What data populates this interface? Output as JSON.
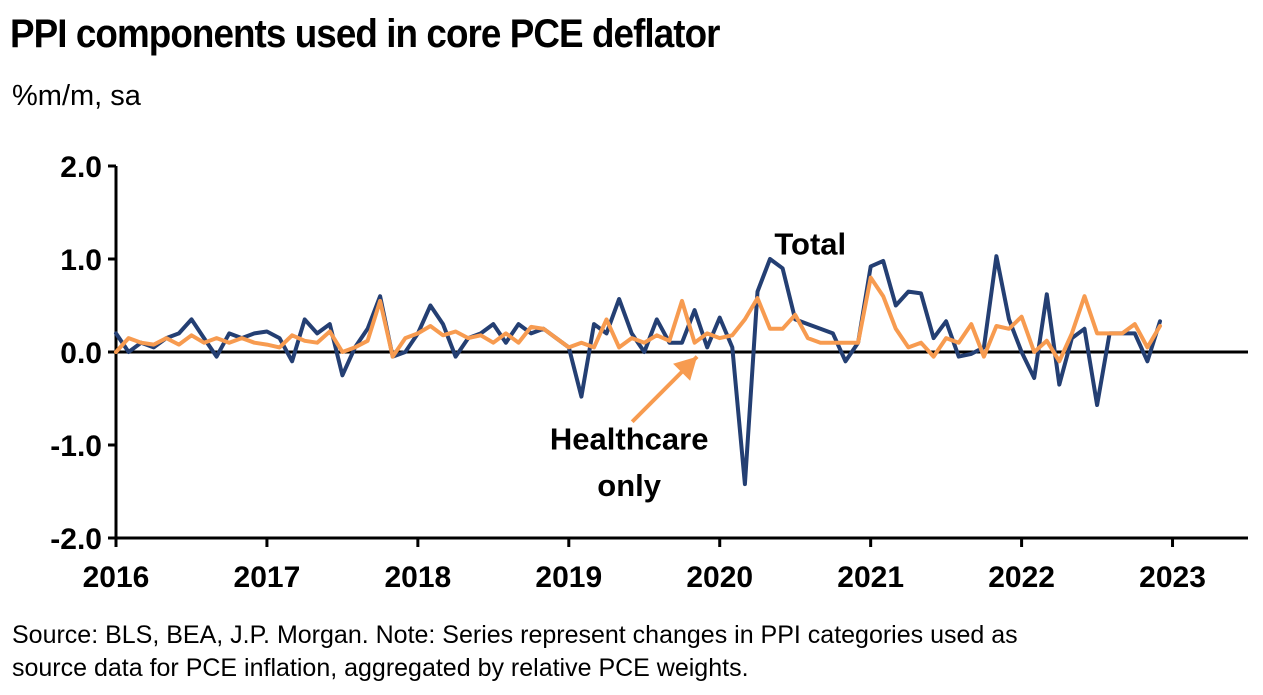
{
  "title": "PPI components used in core PCE deflator",
  "subtitle": "%m/m, sa",
  "source_line1": "Source: BLS, BEA, J.P. Morgan. Note: Series represent changes in PPI categories used as",
  "source_line2": "source data for PCE inflation, aggregated by relative PCE weights.",
  "colors": {
    "total": "#243f73",
    "healthcare": "#f79b50",
    "axis": "#000000"
  },
  "chart_data": {
    "type": "line",
    "title": "PPI components used in core PCE deflator",
    "ylabel": "%m/m, sa",
    "ylim": [
      -2.0,
      2.0
    ],
    "xlim": [
      2016,
      2023.5
    ],
    "y_ticks": [
      "2.0",
      "1.0",
      "0.0",
      "-1.0",
      "-2.0"
    ],
    "y_tick_values": [
      2.0,
      1.0,
      0.0,
      -1.0,
      -2.0
    ],
    "x_ticks": [
      "2016",
      "2017",
      "2018",
      "2019",
      "2020",
      "2021",
      "2022",
      "2023"
    ],
    "x_tick_values": [
      2016,
      2017,
      2018,
      2019,
      2020,
      2021,
      2022,
      2023
    ],
    "annotations": {
      "total": "Total",
      "healthcare_line1": "Healthcare",
      "healthcare_line2": "only"
    },
    "grid": false,
    "series": [
      {
        "name": "Total",
        "x_start": "2016-01",
        "values": [
          0.2,
          0.0,
          0.1,
          0.05,
          0.15,
          0.2,
          0.35,
          0.15,
          -0.05,
          0.2,
          0.15,
          0.2,
          0.22,
          0.15,
          -0.1,
          0.35,
          0.2,
          0.3,
          -0.25,
          0.05,
          0.25,
          0.6,
          -0.05,
          0.0,
          0.2,
          0.5,
          0.3,
          -0.05,
          0.15,
          0.2,
          0.3,
          0.1,
          0.3,
          0.2,
          0.25,
          0.15,
          0.05,
          -0.48,
          0.3,
          0.2,
          0.57,
          0.2,
          0.0,
          0.35,
          0.1,
          0.1,
          0.45,
          0.05,
          0.37,
          0.05,
          -1.42,
          0.65,
          1.0,
          0.9,
          0.35,
          0.3,
          0.25,
          0.2,
          -0.1,
          0.1,
          0.92,
          0.98,
          0.5,
          0.65,
          0.63,
          0.15,
          0.33,
          -0.05,
          -0.02,
          0.05,
          1.03,
          0.35,
          0.0,
          -0.28,
          0.62,
          -0.35,
          0.15,
          0.25,
          -0.57,
          0.2,
          0.2,
          0.2,
          -0.1,
          0.33
        ]
      },
      {
        "name": "Healthcare",
        "x_start": "2016-01",
        "values": [
          0.0,
          0.15,
          0.1,
          0.08,
          0.15,
          0.08,
          0.18,
          0.1,
          0.15,
          0.1,
          0.15,
          0.1,
          0.08,
          0.05,
          0.18,
          0.12,
          0.1,
          0.22,
          0.0,
          0.05,
          0.12,
          0.55,
          -0.05,
          0.15,
          0.2,
          0.28,
          0.18,
          0.22,
          0.15,
          0.18,
          0.1,
          0.2,
          0.1,
          0.27,
          0.25,
          0.15,
          0.05,
          0.1,
          0.05,
          0.35,
          0.05,
          0.15,
          0.1,
          0.18,
          0.12,
          0.55,
          0.1,
          0.2,
          0.15,
          0.18,
          0.35,
          0.58,
          0.25,
          0.25,
          0.4,
          0.15,
          0.1,
          0.1,
          0.1,
          0.1,
          0.8,
          0.6,
          0.25,
          0.05,
          0.1,
          -0.05,
          0.15,
          0.1,
          0.3,
          -0.05,
          0.28,
          0.25,
          0.38,
          0.0,
          0.12,
          -0.1,
          0.2,
          0.6,
          0.2,
          0.2,
          0.2,
          0.3,
          0.05,
          0.28
        ]
      }
    ]
  }
}
